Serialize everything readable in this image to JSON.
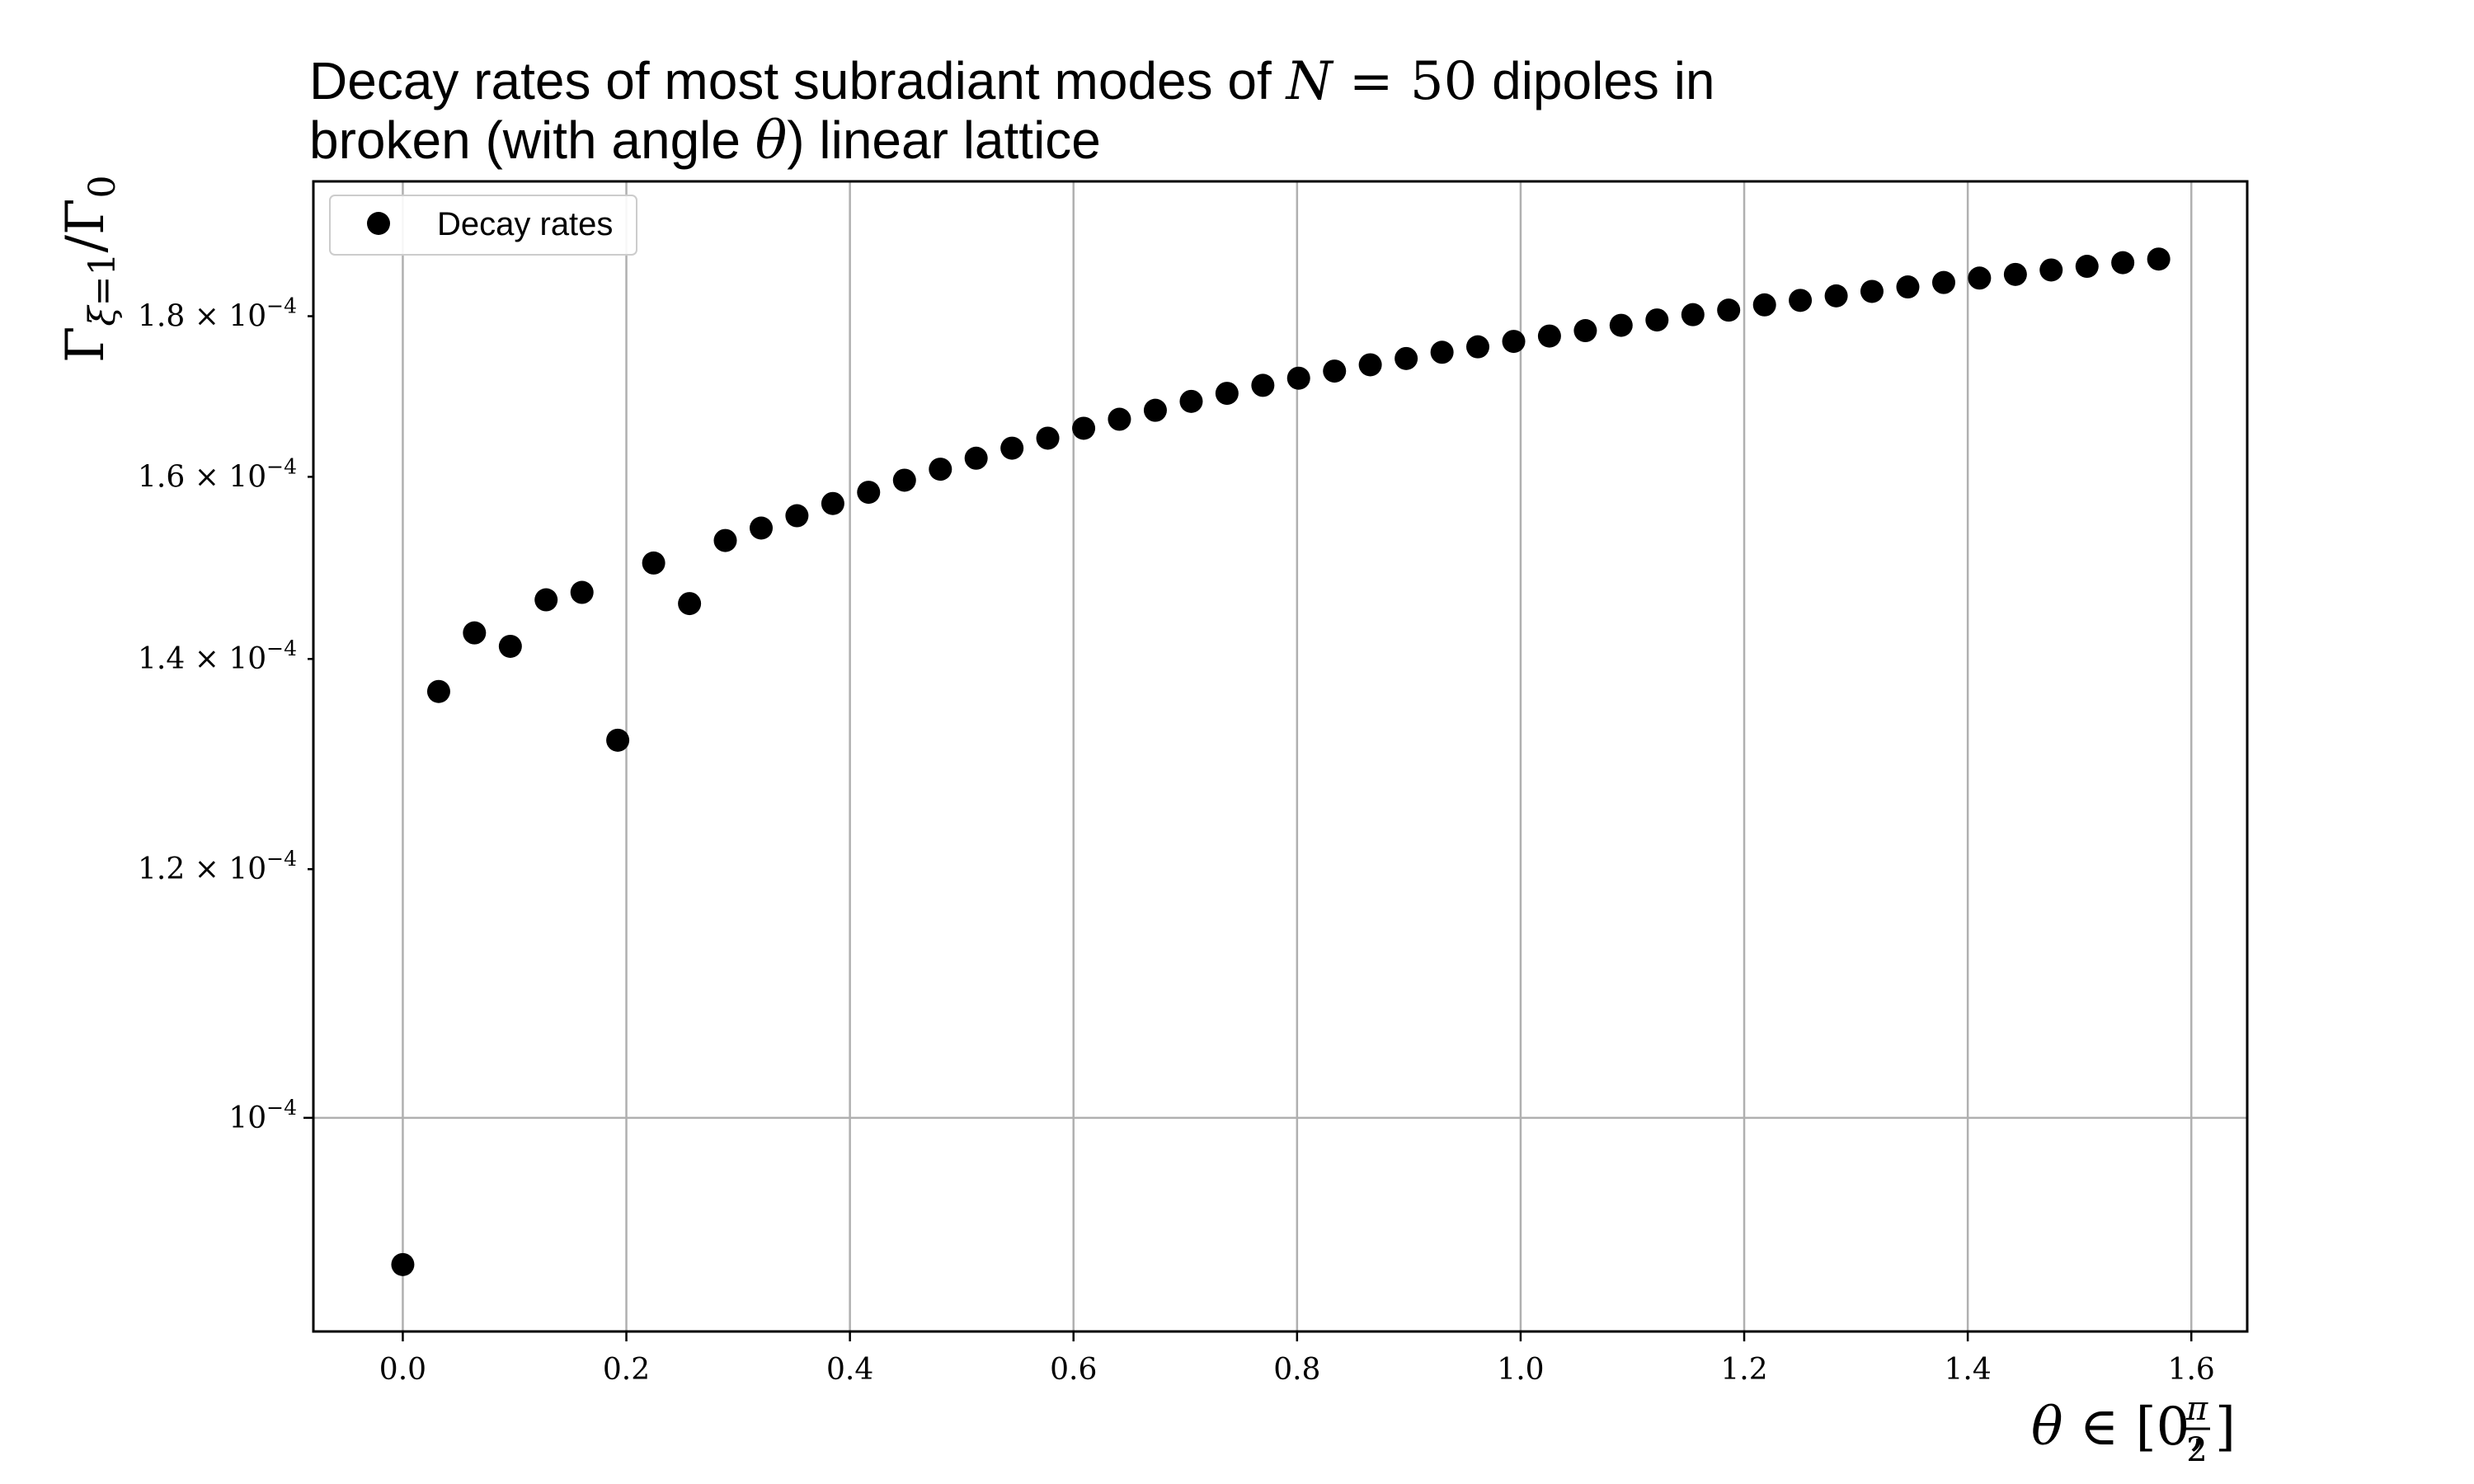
{
  "title": {
    "line1_before": "Decay rates of most subradiant modes of ",
    "line1_math_var": "N",
    "line1_math_rest": " = 50",
    "line1_after": " dipoles in",
    "line2_before": "broken (with angle ",
    "line2_math": "θ",
    "line2_after": ") linear lattice"
  },
  "legend": {
    "label": "Decay rates",
    "placement": "upper-left"
  },
  "colors": {
    "marker": "#000000",
    "grid": "#b0b0b0",
    "axes": "#000000",
    "background": "#ffffff"
  },
  "chart_data": {
    "type": "scatter",
    "title": "Decay rates of most subradiant modes of N = 50 dipoles in broken (with angle θ) linear lattice",
    "xlabel": "θ ∈ [0, π/2]",
    "ylabel": "Γ_{ξ=1}/Γ_0",
    "xscale": "linear",
    "yscale": "log",
    "xlim": [
      -0.08,
      1.65
    ],
    "ylim": [
      8.55e-05,
      0.0001987
    ],
    "grid": true,
    "x_ticks": [
      {
        "value": 0.0,
        "label": "0.0"
      },
      {
        "value": 0.2,
        "label": "0.2"
      },
      {
        "value": 0.4,
        "label": "0.4"
      },
      {
        "value": 0.6,
        "label": "0.6"
      },
      {
        "value": 0.8,
        "label": "0.8"
      },
      {
        "value": 1.0,
        "label": "1.0"
      },
      {
        "value": 1.2,
        "label": "1.2"
      },
      {
        "value": 1.4,
        "label": "1.4"
      },
      {
        "value": 1.6,
        "label": "1.6"
      }
    ],
    "y_ticks": [
      {
        "value": 0.0001,
        "mantissa": "",
        "exponent": "−4",
        "major": true
      },
      {
        "value": 0.00012,
        "mantissa": "1.2",
        "exponent": "−4",
        "major": false
      },
      {
        "value": 0.00014,
        "mantissa": "1.4",
        "exponent": "−4",
        "major": false
      },
      {
        "value": 0.00016,
        "mantissa": "1.6",
        "exponent": "−4",
        "major": false
      },
      {
        "value": 0.00018,
        "mantissa": "1.8",
        "exponent": "−4",
        "major": false
      }
    ],
    "series": [
      {
        "name": "Decay rates",
        "marker": "circle",
        "points": [
          [
            0.0,
            8.98e-05
          ],
          [
            0.0321,
            0.0001367
          ],
          [
            0.0641,
            0.0001427
          ],
          [
            0.0962,
            0.0001413
          ],
          [
            0.1282,
            0.0001462
          ],
          [
            0.1603,
            0.000147
          ],
          [
            0.1923,
            0.0001319
          ],
          [
            0.2244,
            0.0001502
          ],
          [
            0.2565,
            0.0001458
          ],
          [
            0.2885,
            0.0001527
          ],
          [
            0.3206,
            0.0001541
          ],
          [
            0.3526,
            0.0001555
          ],
          [
            0.3847,
            0.0001569
          ],
          [
            0.4167,
            0.0001582
          ],
          [
            0.4488,
            0.0001596
          ],
          [
            0.4809,
            0.0001609
          ],
          [
            0.5129,
            0.0001622
          ],
          [
            0.545,
            0.0001634
          ],
          [
            0.577,
            0.0001646
          ],
          [
            0.6091,
            0.0001658
          ],
          [
            0.6411,
            0.0001669
          ],
          [
            0.6732,
            0.000168
          ],
          [
            0.7053,
            0.0001691
          ],
          [
            0.7373,
            0.0001701
          ],
          [
            0.7694,
            0.0001711
          ],
          [
            0.8014,
            0.000172
          ],
          [
            0.8335,
            0.0001729
          ],
          [
            0.8655,
            0.0001737
          ],
          [
            0.8976,
            0.0001745
          ],
          [
            0.9297,
            0.0001753
          ],
          [
            0.9617,
            0.000176
          ],
          [
            0.9938,
            0.0001767
          ],
          [
            1.0258,
            0.0001774
          ],
          [
            1.0579,
            0.0001781
          ],
          [
            1.0899,
            0.0001788
          ],
          [
            1.122,
            0.0001795
          ],
          [
            1.1541,
            0.0001802
          ],
          [
            1.1861,
            0.0001808
          ],
          [
            1.2182,
            0.0001815
          ],
          [
            1.2502,
            0.0001821
          ],
          [
            1.2823,
            0.0001827
          ],
          [
            1.3143,
            0.0001833
          ],
          [
            1.3464,
            0.0001839
          ],
          [
            1.3785,
            0.0001845
          ],
          [
            1.4105,
            0.0001851
          ],
          [
            1.4426,
            0.0001856
          ],
          [
            1.4746,
            0.0001862
          ],
          [
            1.5067,
            0.0001867
          ],
          [
            1.5387,
            0.0001872
          ],
          [
            1.5708,
            0.0001877
          ]
        ]
      }
    ]
  }
}
